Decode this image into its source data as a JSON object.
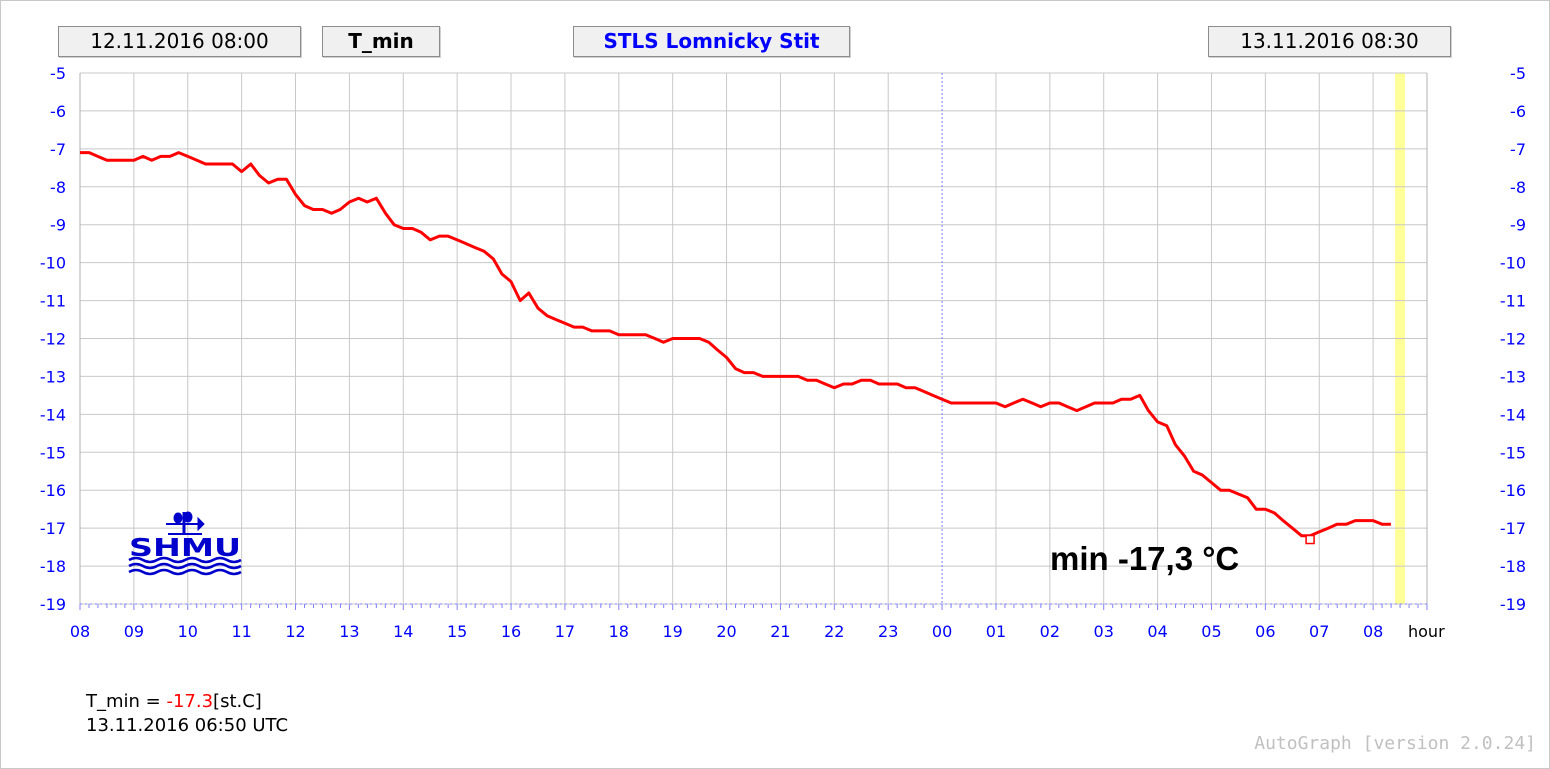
{
  "header": {
    "start_time": "12.11.2016 08:00",
    "variable": "T_min",
    "station": "STLS Lomnicky Stit",
    "end_time": "13.11.2016 08:30"
  },
  "chart_data": {
    "type": "line",
    "title": "STLS Lomnicky Stit",
    "xlabel": "hour",
    "ylabel": "",
    "x_tick_labels": [
      "08",
      "09",
      "10",
      "11",
      "12",
      "13",
      "14",
      "15",
      "16",
      "17",
      "18",
      "19",
      "20",
      "21",
      "22",
      "23",
      "00",
      "01",
      "02",
      "03",
      "04",
      "05",
      "06",
      "07",
      "08"
    ],
    "y_ticks": [
      -5,
      -6,
      -7,
      -8,
      -9,
      -10,
      -11,
      -12,
      -13,
      -14,
      -15,
      -16,
      -17,
      -18,
      -19
    ],
    "ylim": [
      -19,
      -5
    ],
    "x_range_hours": [
      0,
      25
    ],
    "x_unit": "hours after 12.11.2016 08:00 UTC",
    "grid": true,
    "day_boundary_hour": 16,
    "current_hour_marker": 24.5,
    "series": [
      {
        "name": "T_min",
        "color": "#ff0000",
        "x": [
          0,
          0.17,
          0.33,
          0.5,
          0.67,
          0.83,
          1.0,
          1.17,
          1.33,
          1.5,
          1.67,
          1.83,
          2.0,
          2.17,
          2.33,
          2.5,
          2.67,
          2.83,
          3.0,
          3.17,
          3.33,
          3.5,
          3.67,
          3.83,
          4.0,
          4.17,
          4.33,
          4.5,
          4.67,
          4.83,
          5.0,
          5.17,
          5.33,
          5.5,
          5.67,
          5.83,
          6.0,
          6.17,
          6.33,
          6.5,
          6.67,
          6.83,
          7.0,
          7.17,
          7.33,
          7.5,
          7.67,
          7.83,
          8.0,
          8.17,
          8.33,
          8.5,
          8.67,
          8.83,
          9.0,
          9.17,
          9.33,
          9.5,
          9.67,
          9.83,
          10.0,
          10.17,
          10.33,
          10.5,
          10.67,
          10.83,
          11.0,
          11.17,
          11.33,
          11.5,
          11.67,
          11.83,
          12.0,
          12.17,
          12.33,
          12.5,
          12.67,
          12.83,
          13.0,
          13.17,
          13.33,
          13.5,
          13.67,
          13.83,
          14.0,
          14.17,
          14.33,
          14.5,
          14.67,
          14.83,
          15.0,
          15.17,
          15.33,
          15.5,
          15.67,
          15.83,
          16.0,
          16.17,
          16.33,
          16.5,
          16.67,
          16.83,
          17.0,
          17.17,
          17.33,
          17.5,
          17.67,
          17.83,
          18.0,
          18.17,
          18.33,
          18.5,
          18.67,
          18.83,
          19.0,
          19.17,
          19.33,
          19.5,
          19.67,
          19.83,
          20.0,
          20.17,
          20.33,
          20.5,
          20.67,
          20.83,
          21.0,
          21.17,
          21.33,
          21.5,
          21.67,
          21.83,
          22.0,
          22.17,
          22.33,
          22.5,
          22.67,
          22.83,
          23.0,
          23.17,
          23.33,
          23.5,
          23.67,
          23.83,
          24.0,
          24.17,
          24.33
        ],
        "y": [
          -7.1,
          -7.1,
          -7.2,
          -7.3,
          -7.3,
          -7.3,
          -7.3,
          -7.2,
          -7.3,
          -7.2,
          -7.2,
          -7.1,
          -7.2,
          -7.3,
          -7.4,
          -7.4,
          -7.4,
          -7.4,
          -7.6,
          -7.4,
          -7.7,
          -7.9,
          -7.8,
          -7.8,
          -8.2,
          -8.5,
          -8.6,
          -8.6,
          -8.7,
          -8.6,
          -8.4,
          -8.3,
          -8.4,
          -8.3,
          -8.7,
          -9.0,
          -9.1,
          -9.1,
          -9.2,
          -9.4,
          -9.3,
          -9.3,
          -9.4,
          -9.5,
          -9.6,
          -9.7,
          -9.9,
          -10.3,
          -10.5,
          -11.0,
          -10.8,
          -11.2,
          -11.4,
          -11.5,
          -11.6,
          -11.7,
          -11.7,
          -11.8,
          -11.8,
          -11.8,
          -11.9,
          -11.9,
          -11.9,
          -11.9,
          -12.0,
          -12.1,
          -12.0,
          -12.0,
          -12.0,
          -12.0,
          -12.1,
          -12.3,
          -12.5,
          -12.8,
          -12.9,
          -12.9,
          -13.0,
          -13.0,
          -13.0,
          -13.0,
          -13.0,
          -13.1,
          -13.1,
          -13.2,
          -13.3,
          -13.2,
          -13.2,
          -13.1,
          -13.1,
          -13.2,
          -13.2,
          -13.2,
          -13.3,
          -13.3,
          -13.4,
          -13.5,
          -13.6,
          -13.7,
          -13.7,
          -13.7,
          -13.7,
          -13.7,
          -13.7,
          -13.8,
          -13.7,
          -13.6,
          -13.7,
          -13.8,
          -13.7,
          -13.7,
          -13.8,
          -13.9,
          -13.8,
          -13.7,
          -13.7,
          -13.7,
          -13.6,
          -13.6,
          -13.5,
          -13.9,
          -14.2,
          -14.3,
          -14.8,
          -15.1,
          -15.5,
          -15.6,
          -15.8,
          -16.0,
          -16.0,
          -16.1,
          -16.2,
          -16.5,
          -16.5,
          -16.6,
          -16.8,
          -17.0,
          -17.2,
          -17.2,
          -17.1,
          -17.0,
          -16.9,
          -16.9,
          -16.8,
          -16.8,
          -16.8,
          -16.9,
          -16.9
        ]
      }
    ],
    "min_marker": {
      "x": 22.83,
      "y": -17.3,
      "color": "#ff0000"
    },
    "annotation": "min -17,3 °C",
    "highlight_color": "#ffff99",
    "grid_color": "#c8c8c8",
    "day_line_color": "#8080ff"
  },
  "info": {
    "label": "T_min = ",
    "value": "-17.3",
    "unit": "[st.C]",
    "timestamp": "13.11.2016 06:50 UTC"
  },
  "logo_text": "SHMU",
  "footer": "AutoGraph [version 2.0.24]"
}
